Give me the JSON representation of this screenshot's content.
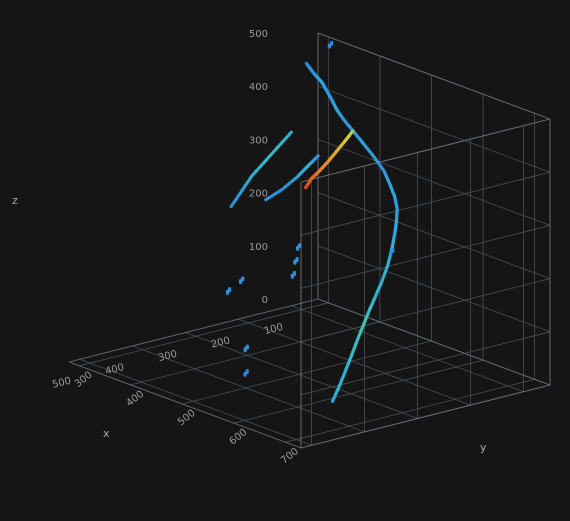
{
  "chart_data": {
    "type": "scatter3d",
    "title": "",
    "xlabel": "x",
    "ylabel": "y",
    "zlabel": "z",
    "x_ticks": [
      "100",
      "200",
      "300",
      "400",
      "500"
    ],
    "y_ticks": [
      "300",
      "400",
      "500",
      "600",
      "700"
    ],
    "z_ticks": [
      "0",
      "100",
      "200",
      "300",
      "400",
      "500"
    ],
    "xlim": [
      50,
      520
    ],
    "ylim": [
      280,
      730
    ],
    "zlim": [
      0,
      500
    ],
    "colorscale": [
      "#1f4fbf",
      "#2f8fe6",
      "#33c3d6",
      "#5fd16a",
      "#d8d33a",
      "#e88a2a",
      "#d83020"
    ],
    "series": [
      {
        "points": [
          [
            139,
            349,
            490,
            0.15
          ],
          [
            150,
            375,
            483,
            0.2
          ],
          [
            160,
            400,
            479,
            0.25
          ],
          [
            175,
            425,
            476,
            0.2
          ],
          [
            190,
            450,
            472,
            0.2
          ],
          [
            205,
            475,
            466,
            0.25
          ],
          [
            215,
            500,
            457,
            0.2
          ],
          [
            222,
            525,
            447,
            0.2
          ],
          [
            228,
            550,
            435,
            0.25
          ],
          [
            232,
            575,
            420,
            0.25
          ],
          [
            237,
            600,
            403,
            0.2
          ],
          [
            241,
            615,
            386,
            0.25
          ],
          [
            246,
            630,
            368,
            0.25
          ],
          [
            251,
            640,
            350,
            0.2
          ],
          [
            257,
            645,
            330,
            0.25
          ],
          [
            263,
            648,
            310,
            0.25
          ],
          [
            269,
            649,
            285,
            0.3
          ],
          [
            278,
            650,
            255,
            0.3
          ],
          [
            290,
            650,
            225,
            0.3
          ],
          [
            301,
            649,
            200,
            0.3
          ],
          [
            312,
            648,
            175,
            0.35
          ],
          [
            322,
            647,
            150,
            0.4
          ],
          [
            332,
            646,
            125,
            0.35
          ],
          [
            342,
            645,
            98,
            0.35
          ],
          [
            352,
            643,
            70,
            0.3
          ],
          [
            362,
            641,
            42,
            0.3
          ],
          [
            372,
            639,
            18,
            0.25
          ]
        ]
      },
      {
        "points": [
          [
            223,
            525,
            447,
            0.6
          ],
          [
            224,
            510,
            422,
            0.7
          ],
          [
            225,
            495,
            398,
            0.75
          ],
          [
            226,
            480,
            374,
            0.8
          ],
          [
            227,
            465,
            352,
            0.85
          ],
          [
            228,
            450,
            332,
            0.9
          ],
          [
            229,
            440,
            312,
            0.95
          ]
        ]
      },
      {
        "points": [
          [
            300,
            485,
            450,
            0.3
          ],
          [
            310,
            470,
            420,
            0.35
          ],
          [
            320,
            455,
            390,
            0.35
          ],
          [
            330,
            440,
            360,
            0.3
          ],
          [
            340,
            430,
            330,
            0.25
          ],
          [
            350,
            420,
            300,
            0.2
          ]
        ]
      },
      {
        "points": [
          [
            225,
            460,
            378,
            0.2
          ],
          [
            235,
            450,
            357,
            0.3
          ],
          [
            245,
            440,
            336,
            0.25
          ],
          [
            260,
            425,
            310,
            0.2
          ],
          [
            275,
            410,
            290,
            0.2
          ]
        ]
      },
      {
        "points": [
          [
            360,
            560,
            280,
            0.2
          ],
          [
            365,
            560,
            255,
            0.2
          ],
          [
            370,
            560,
            230,
            0.2
          ],
          [
            380,
            470,
            190,
            0.2
          ],
          [
            395,
            460,
            170,
            0.2
          ],
          [
            420,
            520,
            90,
            0.2
          ],
          [
            430,
            530,
            50,
            0.15
          ],
          [
            335,
            715,
            320,
            0.15
          ],
          [
            115,
            370,
            530,
            0.15
          ]
        ]
      }
    ]
  }
}
